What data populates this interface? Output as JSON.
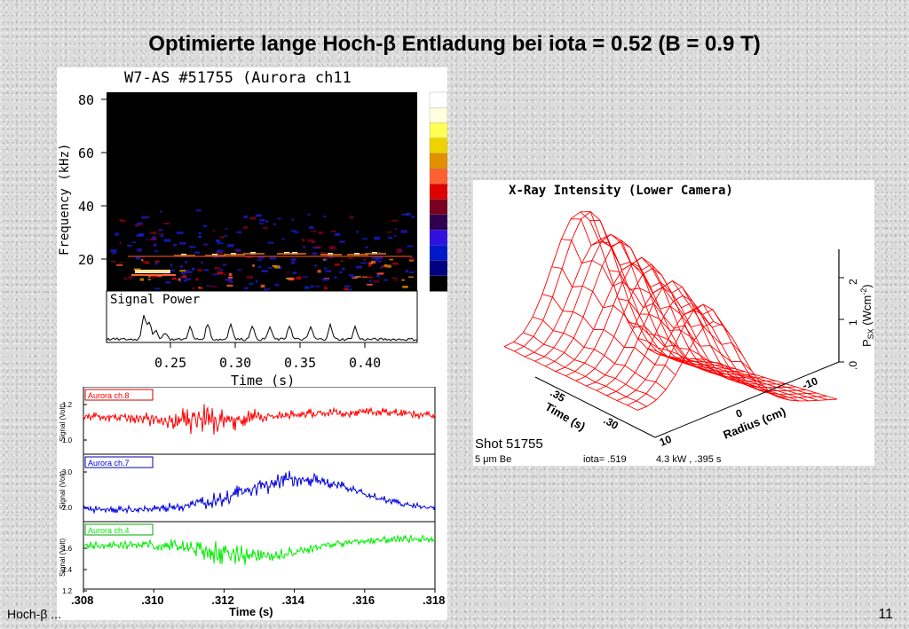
{
  "slide": {
    "title": "Optimierte lange Hoch-β Entladung bei iota = 0.52 (B = 0.9 T)",
    "footer_left": "Hoch-β ... ",
    "page_number": "11"
  },
  "spectrogram": {
    "title": "W7-AS #51755  (Aurora ch11",
    "ylabel": "Frequency (kHz)",
    "yticks": [
      "80",
      "60",
      "40",
      "20"
    ],
    "xlabel": "Time (s)",
    "xticks": [
      "0.25",
      "0.30",
      "0.35",
      "0.40"
    ],
    "signal_label": "Signal Power",
    "colorbar": [
      "#ffffff",
      "#ffffe0",
      "#ffff55",
      "#f0d200",
      "#e09000",
      "#ff6030",
      "#e00000",
      "#7a0020",
      "#300050",
      "#3010e0",
      "#0018c8",
      "#000080",
      "#000000"
    ]
  },
  "signals": {
    "xlabel": "Time (s)",
    "xticks": [
      ".308",
      ".310",
      ".312",
      ".314",
      ".316",
      ".318"
    ],
    "panels": [
      {
        "label": "Aurora ch.8",
        "ylabel": "Signal (Volt)",
        "yticks": [
          "1.2",
          "1.0"
        ],
        "color": "#ff0000",
        "box": "#cc0000"
      },
      {
        "label": "Aurora ch.7",
        "ylabel": "Signal (Volt)",
        "yticks": [
          "3.0",
          "2.0"
        ],
        "color": "#0000dd",
        "box": "#0000aa"
      },
      {
        "label": "Aurora ch.4",
        "ylabel": "Signal (Volt)",
        "yticks": [
          "1.6",
          "1.4",
          "1.2"
        ],
        "color": "#00ee00",
        "box": "#00aa00"
      }
    ]
  },
  "xray": {
    "title": "X-Ray Intensity (Lower Camera)",
    "zlabel": "P",
    "zlabel_sub": "SX",
    "zlabel_unit": " (Wcm",
    "zlabel_exp": "-2",
    "zlabel_close": ")",
    "zticks": [
      "2",
      "1",
      ".0"
    ],
    "time_label": "Time (s)",
    "time_ticks": [
      ".35",
      ".30"
    ],
    "radius_label": "Radius (cm)",
    "radius_ticks": [
      "-10",
      "0",
      "10"
    ],
    "shot": "Shot 51755",
    "info_left": "5   μm Be",
    "info_mid": "iota= .519",
    "info_right": "4.3  kW , .395  s",
    "surface_color": "#ff0000"
  }
}
